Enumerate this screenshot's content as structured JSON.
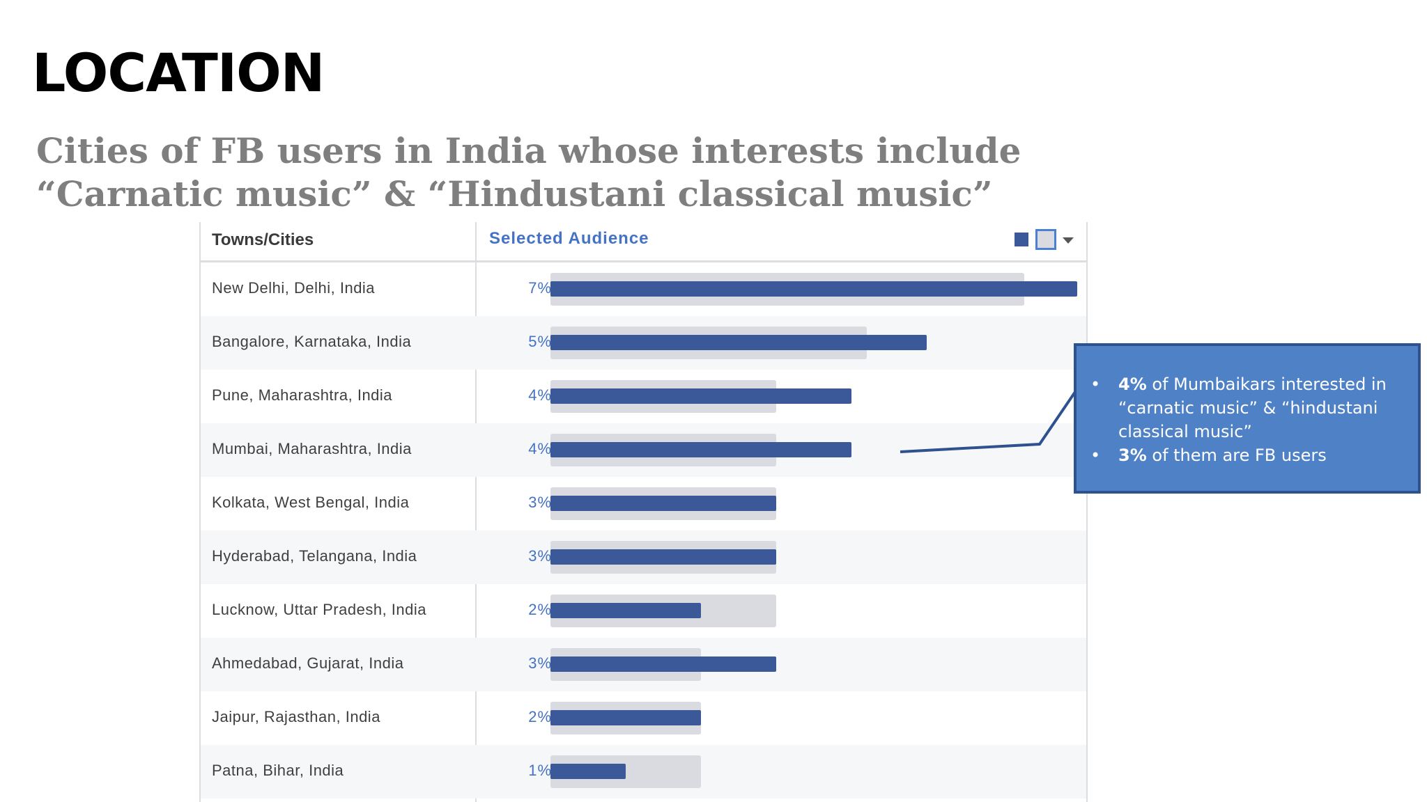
{
  "slide": {
    "title": "LOCATION",
    "subtitle": "Cities of FB users  in India whose interests include “Carnatic music” & “Hindustani classical music”"
  },
  "table": {
    "col_city": "Towns/Cities",
    "col_audience": "Selected Audience"
  },
  "chart_data": {
    "type": "bar",
    "orientation": "horizontal",
    "categories": [
      "New Delhi, Delhi, India",
      "Bangalore, Karnataka, India",
      "Pune, Maharashtra, India",
      "Mumbai, Maharashtra, India",
      "Kolkata, West Bengal, India",
      "Hyderabad, Telangana, India",
      "Lucknow, Uttar Pradesh, India",
      "Ahmedabad, Gujarat, India",
      "Jaipur, Rajasthan, India",
      "Patna, Bihar, India"
    ],
    "labels": [
      "7%",
      "5%",
      "4%",
      "4%",
      "3%",
      "3%",
      "2%",
      "3%",
      "2%",
      "1%"
    ],
    "series": [
      {
        "values": [
          7,
          5,
          4,
          4,
          3,
          3,
          2,
          3,
          2,
          1
        ],
        "color": "#3b5998"
      },
      {
        "values": [
          6.3,
          4.2,
          3,
          3,
          3,
          3,
          3,
          2,
          2,
          2
        ],
        "color": "#d9dbe0"
      }
    ],
    "xlim": [
      0,
      7
    ]
  },
  "callout": {
    "line1_bold": "4%",
    "line1_rest": "  of Mumbaikars interested in “carnatic music” & “hindustani classical music”",
    "line2_bold": "3%",
    "line2_rest": " of them are FB users"
  }
}
